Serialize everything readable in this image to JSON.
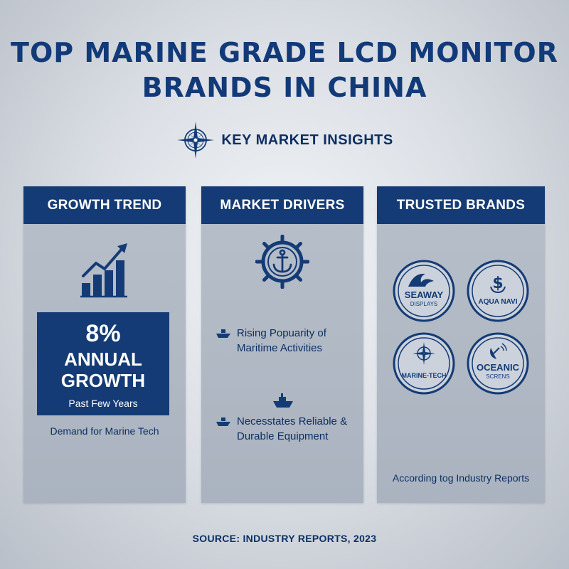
{
  "title": {
    "line1": "TOP MARINE GRADE LCD MONITOR",
    "line2": "BRANDS IN CHINA"
  },
  "insights": {
    "label": "KEY MARKET INSIGHTS",
    "icon": "compass-rose-icon"
  },
  "panels": {
    "growth": {
      "heading": "GROWTH TREND",
      "icon": "growth-bar-chart-icon",
      "stat": {
        "value": "8%",
        "line1": "ANNUAL",
        "line2": "GROWTH",
        "subtitle": "Past Few Years"
      },
      "caption": "Demand for Marine Tech"
    },
    "drivers": {
      "heading": "MARKET DRIVERS",
      "icon": "ships-wheel-anchor-icon",
      "items": [
        {
          "icon": "ship-icon",
          "line1": "Rising Popuarity of",
          "line2": "Maritime Activities"
        },
        {
          "icon": "ship-icon",
          "line1": "Necesstates Reliable &",
          "line2": "Durable Equipment"
        }
      ]
    },
    "brands": {
      "heading": "TRUSTED BRANDS",
      "logos": [
        {
          "name": "SEAWAY",
          "sub": "DISPLAYS",
          "icon": "wave-icon"
        },
        {
          "name": "AQUA NAVI",
          "sub": "",
          "icon": "dollar-anchor-icon"
        },
        {
          "name": "MARINE-TECH",
          "sub": "",
          "icon": "compass-icon"
        },
        {
          "name": "OCEANIC",
          "sub": "SCRENS",
          "icon": "satellite-dish-icon"
        }
      ],
      "caption": "According tog Industry Reports"
    }
  },
  "source": "SOURCE: INDUSTRY REPORTS, 2023",
  "colors": {
    "navy": "#143b75",
    "panel": "#b1b9c5",
    "text": "#0c2f63"
  }
}
